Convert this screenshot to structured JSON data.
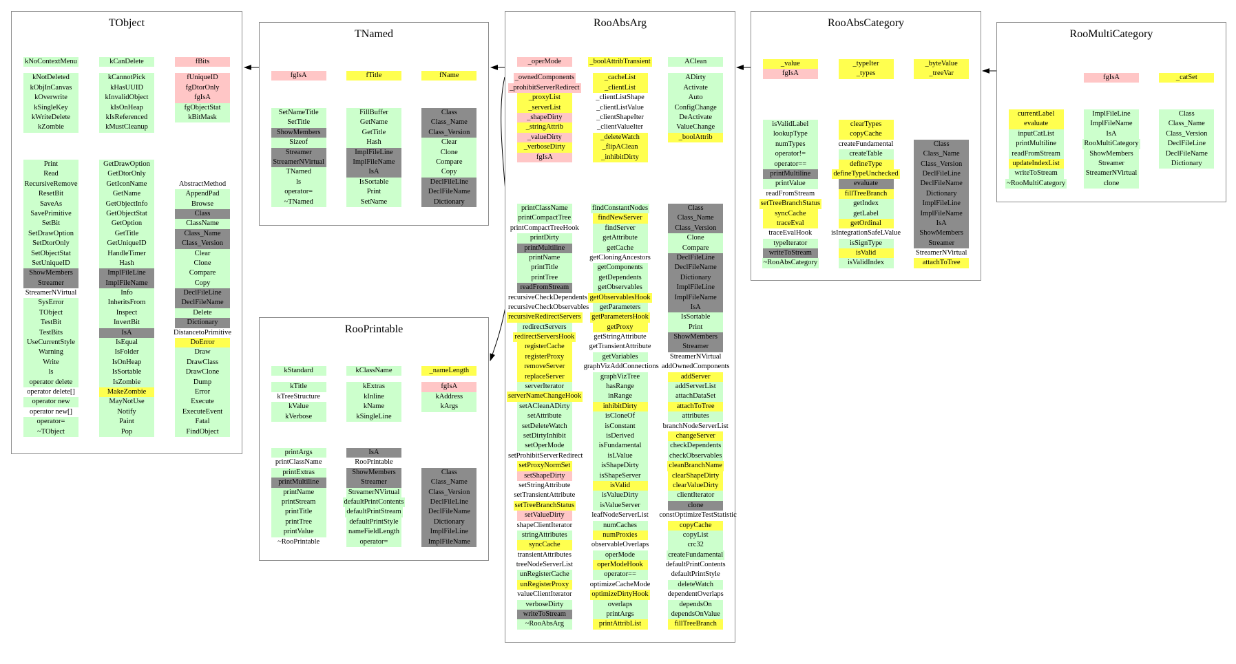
{
  "colors": {
    "g": "#ccffcc",
    "y": "#ffff4f",
    "p": "#ffc6c6",
    "k": "#8c8c8c",
    "w": "transparent"
  },
  "color_legend": {
    "g": "green-highlight",
    "y": "yellow-highlight",
    "p": "pink-highlight",
    "k": "gray-highlight",
    "w": "no-highlight"
  },
  "arrows": [
    {
      "from": "TNamed",
      "to": "TObject"
    },
    {
      "from": "RooAbsArg",
      "to": "TNamed"
    },
    {
      "from": "RooAbsArg",
      "to": "RooPrintable"
    },
    {
      "from": "RooAbsCategory",
      "to": "RooAbsArg"
    },
    {
      "from": "RooMultiCategory",
      "to": "RooAbsCategory"
    }
  ],
  "classes": [
    {
      "id": "TObject",
      "title": "TObject",
      "data": [
        [
          "g:kNoContextMenu",
          "-",
          "g:kNotDeleted",
          "g:kObjInCanvas",
          "g:kOverwrite",
          "g:kSingleKey",
          "g:kWriteDelete",
          "g:kZombie"
        ],
        [
          "g:kCanDelete",
          "-",
          "g:kCannotPick",
          "g:kHasUUID",
          "g:kInvalidObject",
          "g:kIsOnHeap",
          "g:kIsReferenced",
          "g:kMustCleanup"
        ],
        [
          "p:fBits",
          "-",
          "p:fUniqueID",
          "p:fgDtorOnly",
          "p:fgIsA",
          "g:fgObjectStat",
          "g:kBitMask"
        ]
      ],
      "methods": [
        [
          "g:Print",
          "g:Read",
          "g:RecursiveRemove",
          "g:ResetBit",
          "g:SaveAs",
          "g:SavePrimitive",
          "g:SetBit",
          "g:SetDrawOption",
          "g:SetDtorOnly",
          "g:SetObjectStat",
          "g:SetUniqueID",
          "k:ShowMembers",
          "k:Streamer",
          "w:StreamerNVirtual",
          "g:SysError",
          "g:TObject",
          "g:TestBit",
          "g:TestBits",
          "g:UseCurrentStyle",
          "g:Warning",
          "g:Write",
          "g:ls",
          "g:operator delete",
          "w:operator delete[]",
          "g:operator new",
          "w:operator new[]",
          "g:operator=",
          "g:~TObject"
        ],
        [
          "g:GetDrawOption",
          "g:GetDtorOnly",
          "g:GetIconName",
          "g:GetName",
          "g:GetObjectInfo",
          "g:GetObjectStat",
          "g:GetOption",
          "g:GetTitle",
          "g:GetUniqueID",
          "g:HandleTimer",
          "g:Hash",
          "k:ImplFileLine",
          "k:ImplFileName",
          "g:Info",
          "g:InheritsFrom",
          "g:Inspect",
          "g:InvertBit",
          "k:IsA",
          "g:IsEqual",
          "g:IsFolder",
          "g:IsOnHeap",
          "g:IsSortable",
          "g:IsZombie",
          "y:MakeZombie",
          "g:MayNotUse",
          "g:Notify",
          "g:Paint",
          "g:Pop"
        ],
        [
          "",
          "",
          "w:AbstractMethod",
          "g:AppendPad",
          "g:Browse",
          "k:Class",
          "g:ClassName",
          "k:Class_Name",
          "k:Class_Version",
          "g:Clear",
          "g:Clone",
          "g:Compare",
          "g:Copy",
          "k:DeclFileLine",
          "k:DeclFileName",
          "g:Delete",
          "k:Dictionary",
          "w:DistancetoPrimitive",
          "y:DoError",
          "g:Draw",
          "g:DrawClass",
          "g:DrawClone",
          "g:Dump",
          "g:Error",
          "g:Execute",
          "g:ExecuteEvent",
          "g:Fatal",
          "g:FindObject"
        ]
      ]
    },
    {
      "id": "TNamed",
      "title": "TNamed",
      "data": [
        [
          "p:fgIsA"
        ],
        [
          "y:fTitle"
        ],
        [
          "y:fName"
        ]
      ],
      "methods": [
        [
          "g:SetNameTitle",
          "g:SetTitle",
          "k:ShowMembers",
          "g:Sizeof",
          "k:Streamer",
          "k:StreamerNVirtual",
          "g:TNamed",
          "g:ls",
          "g:operator=",
          "g:~TNamed"
        ],
        [
          "g:FillBuffer",
          "g:GetName",
          "g:GetTitle",
          "g:Hash",
          "k:ImplFileLine",
          "k:ImplFileName",
          "k:IsA",
          "g:IsSortable",
          "g:Print",
          "g:SetName"
        ],
        [
          "k:Class",
          "k:Class_Name",
          "k:Class_Version",
          "g:Clear",
          "g:Clone",
          "g:Compare",
          "g:Copy",
          "k:DeclFileLine",
          "k:DeclFileName",
          "k:Dictionary"
        ]
      ]
    },
    {
      "id": "RooAbsArg",
      "title": "RooAbsArg",
      "data": [
        [
          "p:_operMode",
          "-",
          "p:_ownedComponents",
          "p:_prohibitServerRedirect",
          "y:_proxyList",
          "y:_serverList",
          "p:_shapeDirty",
          "y:_stringAttrib",
          "p:_valueDirty",
          "y:_verboseDirty",
          "p:fgIsA"
        ],
        [
          "y:_boolAttribTransient",
          "-",
          "y:_cacheList",
          "y:_clientList",
          "w:_clientListShape",
          "w:_clientListValue",
          "w:_clientShapeIter",
          "w:_clientValueIter",
          "y:_deleteWatch",
          "y:_flipAClean",
          "y:_inhibitDirty"
        ],
        [
          "g:AClean",
          "-",
          "g:ADirty",
          "g:Activate",
          "g:Auto",
          "g:ConfigChange",
          "g:DeActivate",
          "g:ValueChange",
          "y:_boolAttrib"
        ]
      ],
      "methods": [
        [
          "g:printClassName",
          "g:printCompactTree",
          "w:printCompactTreeHook",
          "g:printDirty",
          "k:printMultiline",
          "g:printName",
          "g:printTitle",
          "g:printTree",
          "k:readFromStream",
          "w:recursiveCheckDependents",
          "w:recursiveCheckObservables",
          "y:recursiveRedirectServers",
          "g:redirectServers",
          "y:redirectServersHook",
          "y:registerCache",
          "y:registerProxy",
          "y:removeServer",
          "y:replaceServer",
          "g:serverIterator",
          "y:serverNameChangeHook",
          "g:setACleanADirty",
          "g:setAttribute",
          "g:setDeleteWatch",
          "g:setDirtyInhibit",
          "g:setOperMode",
          "w:setProhibitServerRedirect",
          "y:setProxyNormSet",
          "p:setShapeDirty",
          "w:setStringAttribute",
          "w:setTransientAttribute",
          "y:setTreeBranchStatus",
          "p:setValueDirty",
          "w:shapeClientIterator",
          "g:stringAttributes",
          "y:syncCache",
          "w:transientAttributes",
          "w:treeNodeServerList",
          "g:unRegisterCache",
          "y:unRegisterProxy",
          "w:valueClientIterator",
          "g:verboseDirty",
          "k:writeToStream",
          "g:~RooAbsArg"
        ],
        [
          "g:findConstantNodes",
          "y:findNewServer",
          "g:findServer",
          "g:getAttribute",
          "g:getCache",
          "w:getCloningAncestors",
          "g:getComponents",
          "g:getDependents",
          "g:getObservables",
          "y:getObservablesHook",
          "g:getParameters",
          "y:getParametersHook",
          "y:getProxy",
          "w:getStringAttribute",
          "w:getTransientAttribute",
          "g:getVariables",
          "w:graphVizAddConnections",
          "g:graphVizTree",
          "g:hasRange",
          "g:inRange",
          "y:inhibitDirty",
          "g:isCloneOf",
          "g:isConstant",
          "g:isDerived",
          "g:isFundamental",
          "g:isLValue",
          "g:isShapeDirty",
          "g:isShapeServer",
          "y:isValid",
          "g:isValueDirty",
          "g:isValueServer",
          "w:leafNodeServerList",
          "g:numCaches",
          "y:numProxies",
          "w:observableOverlaps",
          "g:operMode",
          "y:operModeHook",
          "g:operator==",
          "w:optimizeCacheMode",
          "y:optimizeDirtyHook",
          "g:overlaps",
          "g:printArgs",
          "y:printAttribList"
        ],
        [
          "k:Class",
          "k:Class_Name",
          "k:Class_Version",
          "g:Clone",
          "g:Compare",
          "k:DeclFileLine",
          "k:DeclFileName",
          "k:Dictionary",
          "k:ImplFileLine",
          "k:ImplFileName",
          "k:IsA",
          "g:IsSortable",
          "g:Print",
          "k:ShowMembers",
          "k:Streamer",
          "w:StreamerNVirtual",
          "w:addOwnedComponents",
          "y:addServer",
          "g:addServerList",
          "g:attachDataSet",
          "y:attachToTree",
          "g:attributes",
          "w:branchNodeServerList",
          "y:changeServer",
          "g:checkDependents",
          "g:checkObservables",
          "y:cleanBranchName",
          "y:clearShapeDirty",
          "y:clearValueDirty",
          "g:clientIterator",
          "k:clone",
          "w:constOptimizeTestStatistic",
          "y:copyCache",
          "g:copyList",
          "g:crc32",
          "g:createFundamental",
          "w:defaultPrintContents",
          "w:defaultPrintStyle",
          "g:deleteWatch",
          "w:dependentOverlaps",
          "g:dependsOn",
          "g:dependsOnValue",
          "y:fillTreeBranch"
        ]
      ]
    },
    {
      "id": "RooAbsCategory",
      "title": "RooAbsCategory",
      "data": [
        [
          "y:_value",
          "p:fgIsA"
        ],
        [
          "y:_typeIter",
          "y:_types"
        ],
        [
          "y:_byteValue",
          "y:_treeVar"
        ]
      ],
      "methods": [
        [
          "g:isValidLabel",
          "g:lookupType",
          "g:numTypes",
          "g:operator!=",
          "g:operator==",
          "k:printMultiline",
          "g:printValue",
          "w:readFromStream",
          "y:setTreeBranchStatus",
          "y:syncCache",
          "y:traceEval",
          "w:traceEvalHook",
          "g:typeIterator",
          "k:writeToStream",
          "g:~RooAbsCategory"
        ],
        [
          "y:clearTypes",
          "y:copyCache",
          "w:createFundamental",
          "g:createTable",
          "y:defineType",
          "y:defineTypeUnchecked",
          "k:evaluate",
          "y:fillTreeBranch",
          "g:getIndex",
          "g:getLabel",
          "y:getOrdinal",
          "w:isIntegrationSafeLValue",
          "g:isSignType",
          "y:isValid",
          "g:isValidIndex"
        ],
        [
          "",
          "",
          "k:Class",
          "k:Class_Name",
          "k:Class_Version",
          "k:DeclFileLine",
          "k:DeclFileName",
          "k:Dictionary",
          "k:ImplFileLine",
          "k:ImplFileName",
          "k:IsA",
          "k:ShowMembers",
          "k:Streamer",
          "w:StreamerNVirtual",
          "y:attachToTree"
        ]
      ]
    },
    {
      "id": "RooMultiCategory",
      "title": "RooMultiCategory",
      "data": [
        [],
        [
          "p:fgIsA"
        ],
        [
          "y:_catSet"
        ]
      ],
      "methods": [
        [
          "y:currentLabel",
          "y:evaluate",
          "g:inputCatList",
          "g:printMultiline",
          "g:readFromStream",
          "y:updateIndexList",
          "g:writeToStream",
          "g:~RooMultiCategory"
        ],
        [
          "g:ImplFileLine",
          "g:ImplFileName",
          "g:IsA",
          "g:RooMultiCategory",
          "g:ShowMembers",
          "g:Streamer",
          "g:StreamerNVirtual",
          "g:clone"
        ],
        [
          "g:Class",
          "g:Class_Name",
          "g:Class_Version",
          "g:DeclFileLine",
          "g:DeclFileName",
          "g:Dictionary"
        ]
      ]
    },
    {
      "id": "RooPrintable",
      "title": "RooPrintable",
      "data": [
        [
          "g:kStandard",
          "-",
          "g:kTitle",
          "w:kTreeStructure",
          "g:kValue",
          "g:kVerbose"
        ],
        [
          "g:kClassName",
          "-",
          "g:kExtras",
          "g:kInline",
          "g:kName",
          "g:kSingleLine"
        ],
        [
          "y:_nameLength",
          "-",
          "p:fgIsA",
          "g:kAddress",
          "g:kArgs"
        ]
      ],
      "methods": [
        [
          "g:printArgs",
          "w:printClassName",
          "g:printExtras",
          "k:printMultiline",
          "g:printName",
          "g:printStream",
          "g:printTitle",
          "g:printTree",
          "g:printValue",
          "w:~RooPrintable"
        ],
        [
          "k:IsA",
          "w:RooPrintable",
          "k:ShowMembers",
          "k:Streamer",
          "g:StreamerNVirtual",
          "g:defaultPrintContents",
          "g:defaultPrintStream",
          "g:defaultPrintStyle",
          "g:nameFieldLength",
          "g:operator="
        ],
        [
          "",
          "",
          "k:Class",
          "k:Class_Name",
          "k:Class_Version",
          "k:DeclFileLine",
          "k:DeclFileName",
          "k:Dictionary",
          "k:ImplFileLine",
          "k:ImplFileName"
        ]
      ]
    }
  ]
}
